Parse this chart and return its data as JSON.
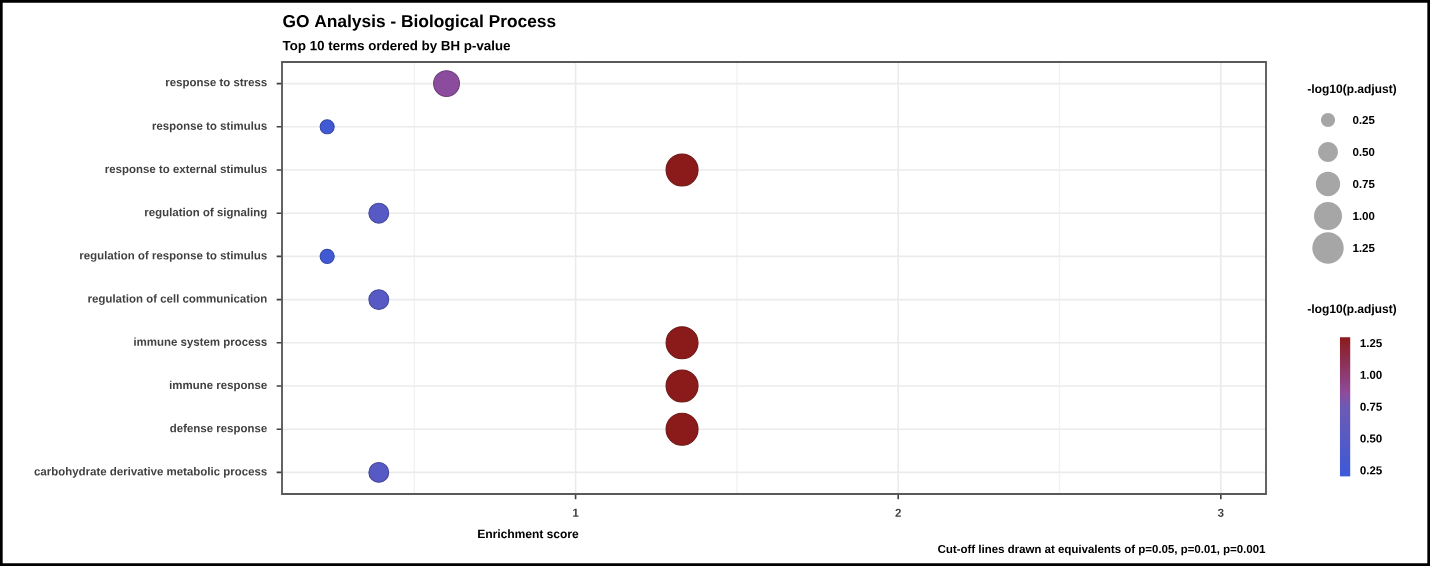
{
  "chart_data": {
    "type": "bubble",
    "title": "GO Analysis - Biological Process",
    "subtitle": "Top 10 terms ordered by BH p-value",
    "xlabel": "Enrichment score",
    "categories": [
      "response to stress",
      "response to stimulus",
      "response to external stimulus",
      "regulation of signaling",
      "regulation of response to stimulus",
      "regulation of cell communication",
      "immune system process",
      "immune response",
      "defense response",
      "carbohydrate derivative metabolic process"
    ],
    "values": [
      0.6,
      0.23,
      1.33,
      0.39,
      0.23,
      0.39,
      1.33,
      1.33,
      1.33,
      0.39
    ],
    "sizes": [
      0.85,
      0.25,
      1.3,
      0.5,
      0.25,
      0.5,
      1.3,
      1.3,
      1.3,
      0.5
    ],
    "cvalues": [
      0.85,
      0.25,
      1.3,
      0.5,
      0.25,
      0.5,
      1.3,
      1.3,
      1.3,
      0.5
    ],
    "orientation": "horizontal",
    "size_legend": [
      {
        "value": 0.25,
        "label": "0.25"
      },
      {
        "value": 0.5,
        "label": "0.50"
      },
      {
        "value": 0.75,
        "label": "0.75"
      },
      {
        "value": 1.0,
        "label": "1.00"
      },
      {
        "value": 1.25,
        "label": "1.25"
      }
    ],
    "legend_title": "-log10(p.adjust)",
    "clabel": "-log10(p.adjust)",
    "clim": [
      0.2,
      1.3
    ],
    "cticks": [
      {
        "value": 0.25,
        "label": "0.25"
      },
      {
        "value": 0.5,
        "label": "0.50"
      },
      {
        "value": 0.75,
        "label": "0.75"
      },
      {
        "value": 1.0,
        "label": "1.00"
      },
      {
        "value": 1.25,
        "label": "1.25"
      }
    ],
    "xlim": [
      0.09,
      3.14
    ],
    "xticks": [
      {
        "value": 1,
        "label": "1"
      },
      {
        "value": 2,
        "label": "2"
      },
      {
        "value": 3,
        "label": "3"
      }
    ],
    "grid": true,
    "annotations": [
      "Cut-off lines drawn at equivalents of p=0.05, p=0.01, p=0.001"
    ]
  }
}
